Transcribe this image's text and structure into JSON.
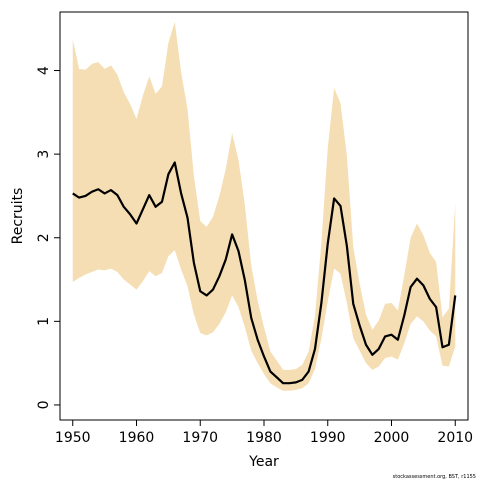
{
  "chart_data": {
    "type": "line",
    "xlabel": "Year",
    "ylabel": "Recruits",
    "xlim": [
      1948,
      2012
    ],
    "ylim": [
      -0.18,
      4.7
    ],
    "xticks": [
      1950,
      1960,
      1970,
      1980,
      1990,
      2000,
      2010
    ],
    "yticks": [
      0,
      1,
      2,
      3,
      4
    ],
    "grid": false,
    "footnote": "stockassessment.org, BST, r1155",
    "colors": {
      "band": "#F5DEB3",
      "line": "#000000",
      "frame": "#000000"
    },
    "x": [
      1950,
      1951,
      1952,
      1953,
      1954,
      1955,
      1956,
      1957,
      1958,
      1959,
      1960,
      1961,
      1962,
      1963,
      1964,
      1965,
      1966,
      1967,
      1968,
      1969,
      1970,
      1971,
      1972,
      1973,
      1974,
      1975,
      1976,
      1977,
      1978,
      1979,
      1980,
      1981,
      1982,
      1983,
      1984,
      1985,
      1986,
      1987,
      1988,
      1989,
      1990,
      1991,
      1992,
      1993,
      1994,
      1995,
      1996,
      1997,
      1998,
      1999,
      2000,
      2001,
      2002,
      2003,
      2004,
      2005,
      2006,
      2007,
      2008,
      2009,
      2010
    ],
    "series": [
      {
        "values": [
          2.53,
          2.48,
          2.5,
          2.55,
          2.58,
          2.53,
          2.57,
          2.51,
          2.37,
          2.28,
          2.17,
          2.34,
          2.51,
          2.37,
          2.43,
          2.76,
          2.9,
          2.53,
          2.24,
          1.7,
          1.36,
          1.31,
          1.38,
          1.54,
          1.74,
          2.04,
          1.84,
          1.49,
          1.04,
          0.78,
          0.58,
          0.4,
          0.33,
          0.26,
          0.26,
          0.27,
          0.3,
          0.4,
          0.67,
          1.22,
          1.93,
          2.47,
          2.38,
          1.9,
          1.21,
          0.95,
          0.72,
          0.6,
          0.67,
          0.82,
          0.84,
          0.78,
          1.07,
          1.41,
          1.51,
          1.43,
          1.27,
          1.17,
          0.69,
          0.72,
          1.31
        ],
        "lower": [
          1.47,
          1.52,
          1.56,
          1.59,
          1.62,
          1.61,
          1.63,
          1.59,
          1.5,
          1.44,
          1.38,
          1.48,
          1.6,
          1.54,
          1.58,
          1.78,
          1.85,
          1.62,
          1.42,
          1.08,
          0.86,
          0.83,
          0.87,
          0.97,
          1.11,
          1.31,
          1.17,
          0.93,
          0.65,
          0.5,
          0.37,
          0.26,
          0.21,
          0.17,
          0.17,
          0.18,
          0.2,
          0.26,
          0.43,
          0.79,
          1.24,
          1.63,
          1.57,
          1.22,
          0.8,
          0.65,
          0.5,
          0.42,
          0.46,
          0.56,
          0.58,
          0.54,
          0.74,
          0.97,
          1.06,
          1.0,
          0.89,
          0.82,
          0.47,
          0.46,
          0.7
        ],
        "upper": [
          4.37,
          4.02,
          4.01,
          4.08,
          4.1,
          4.02,
          4.06,
          3.95,
          3.74,
          3.6,
          3.42,
          3.7,
          3.93,
          3.72,
          3.81,
          4.33,
          4.58,
          3.98,
          3.54,
          2.74,
          2.2,
          2.13,
          2.25,
          2.5,
          2.82,
          3.25,
          2.93,
          2.39,
          1.67,
          1.25,
          0.93,
          0.64,
          0.53,
          0.42,
          0.42,
          0.43,
          0.48,
          0.64,
          1.07,
          1.94,
          3.07,
          3.79,
          3.61,
          2.98,
          1.89,
          1.45,
          1.08,
          0.9,
          1.01,
          1.21,
          1.22,
          1.13,
          1.55,
          2.0,
          2.17,
          2.03,
          1.82,
          1.71,
          1.05,
          1.15,
          2.41
        ]
      }
    ]
  }
}
